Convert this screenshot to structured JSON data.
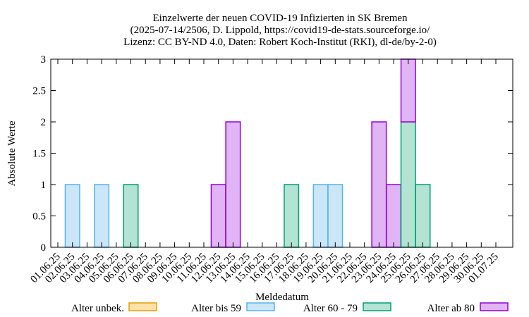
{
  "chart_data": {
    "type": "bar",
    "stacked": true,
    "title_lines": [
      "Einzelwerte der neuen COVID-19 Infizierten in SK Bremen",
      "(2025-07-14/2506, D. Lippold, https://covid19-de-stats.sourceforge.io/",
      "Lizenz: CC BY-ND 4.0, Daten: Robert Koch-Institut (RKI), dl-de/by-2-0)"
    ],
    "xlabel": "Meldedatum",
    "ylabel": "Absolute Werte",
    "ylim": [
      0,
      3
    ],
    "yticks": [
      "0",
      "0.5",
      "1",
      "1.5",
      "2",
      "2.5",
      "3"
    ],
    "grid": false,
    "legend_position": "bottom",
    "categories": [
      "01.06.25",
      "02.06.25",
      "03.06.25",
      "04.06.25",
      "05.06.25",
      "06.06.25",
      "07.06.25",
      "08.06.25",
      "09.06.25",
      "10.06.25",
      "11.06.25",
      "12.06.25",
      "13.06.25",
      "14.06.25",
      "15.06.25",
      "16.06.25",
      "17.06.25",
      "18.06.25",
      "19.06.25",
      "20.06.25",
      "21.06.25",
      "22.06.25",
      "23.06.25",
      "24.06.25",
      "25.06.25",
      "26.06.25",
      "27.06.25",
      "28.06.25",
      "29.06.25",
      "30.06.25",
      "01.07.25"
    ],
    "series": [
      {
        "name": "Alter unbek.",
        "fill": "#fde2a8",
        "stroke": "#e69f00",
        "values": [
          0,
          0,
          0,
          0,
          0,
          0,
          0,
          0,
          0,
          0,
          0,
          0,
          0,
          0,
          0,
          0,
          0,
          0,
          0,
          0,
          0,
          0,
          0,
          0,
          0,
          0,
          0,
          0,
          0,
          0,
          0
        ]
      },
      {
        "name": "Alter bis 59",
        "fill": "#cbe6f7",
        "stroke": "#56b4e9",
        "values": [
          0,
          1,
          0,
          1,
          0,
          0,
          0,
          0,
          0,
          0,
          0,
          0,
          0,
          0,
          0,
          0,
          0,
          0,
          1,
          1,
          0,
          0,
          0,
          0,
          0,
          0,
          0,
          0,
          0,
          0,
          0
        ]
      },
      {
        "name": "Alter 60 - 79",
        "fill": "#b3e3d3",
        "stroke": "#009e73",
        "values": [
          0,
          0,
          0,
          0,
          0,
          1,
          0,
          0,
          0,
          0,
          0,
          0,
          0,
          0,
          0,
          0,
          1,
          0,
          0,
          0,
          0,
          0,
          0,
          0,
          2,
          1,
          0,
          0,
          0,
          0,
          0
        ]
      },
      {
        "name": "Alter ab 80",
        "fill": "#e0b4f5",
        "stroke": "#9400d3",
        "values": [
          0,
          0,
          0,
          0,
          0,
          0,
          0,
          0,
          0,
          0,
          0,
          1,
          2,
          0,
          0,
          0,
          0,
          0,
          0,
          0,
          0,
          0,
          2,
          1,
          1,
          0,
          0,
          0,
          0,
          0,
          0
        ]
      }
    ],
    "colors": {
      "axis": "#000000",
      "background": "#ffffff"
    }
  }
}
